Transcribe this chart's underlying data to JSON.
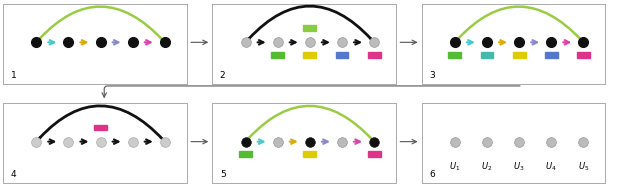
{
  "panel_labels": [
    "1",
    "2",
    "3",
    "4",
    "5",
    "6"
  ],
  "arrow_colors": [
    "#44cccc",
    "#ddaa00",
    "#8888cc",
    "#dd44aa"
  ],
  "arc_color_green": "#99cc44",
  "arc_color_black": "#111111",
  "arc_color_gray": "#777777",
  "node_black": "#111111",
  "node_gray": "#bbbbbb",
  "node_lgray": "#cccccc",
  "sq_green": "#55bb33",
  "sq_teal": "#44bbaa",
  "sq_yellow": "#ddcc00",
  "sq_blue": "#5577cc",
  "sq_pink": "#dd3388",
  "sq_lgreen": "#88cc44",
  "border_color": "#aaaaaa",
  "connector_color": "#555555"
}
